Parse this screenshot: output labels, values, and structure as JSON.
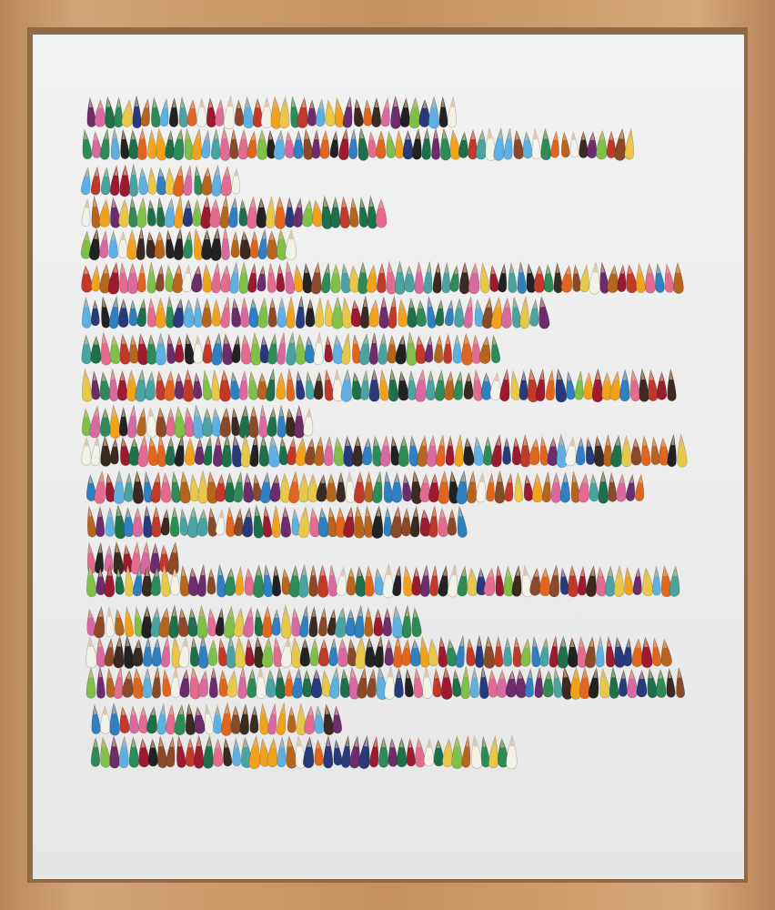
{
  "artwork": {
    "subject": "pencil-shavings-rows",
    "palette": [
      "#c0392b",
      "#e0661f",
      "#f0a21e",
      "#e8c84a",
      "#2e8b57",
      "#1f6f4a",
      "#2f7fc1",
      "#5fb0e0",
      "#283a7a",
      "#6b2d6b",
      "#d96aa0",
      "#8a4a2a",
      "#3a2a22",
      "#b5651d",
      "#e36b8f",
      "#4aa3a0",
      "#9b1b30",
      "#222222",
      "#7fbf4a",
      "#f2f2e8"
    ],
    "frame_color": "#c99a6a",
    "mat_color": "#efefef"
  }
}
